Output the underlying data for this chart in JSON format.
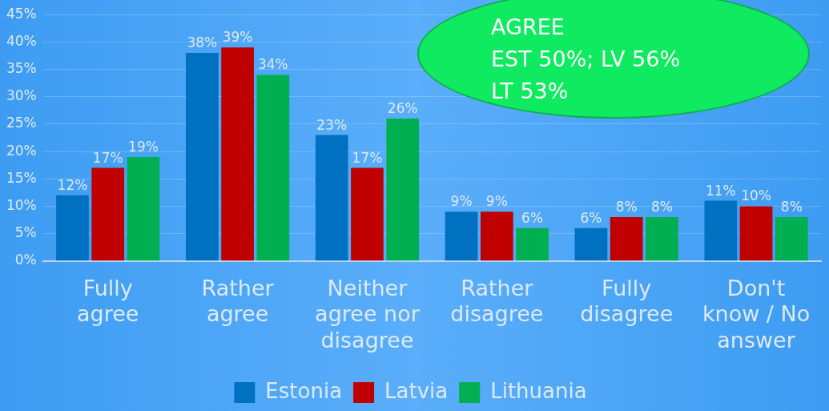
{
  "chart_data": {
    "type": "bar",
    "categories": [
      "Fully agree",
      "Rather agree",
      "Neither agree nor disagree",
      "Rather disagree",
      "Fully disagree",
      "Don't know / No answer"
    ],
    "series": [
      {
        "name": "Estonia",
        "color": "#0070c0",
        "values": [
          12,
          38,
          23,
          9,
          6,
          11
        ]
      },
      {
        "name": "Latvia",
        "color": "#c00000",
        "values": [
          17,
          39,
          17,
          9,
          8,
          10
        ]
      },
      {
        "name": "Lithuania",
        "color": "#00b050",
        "values": [
          19,
          34,
          26,
          6,
          8,
          8
        ]
      }
    ],
    "ylim": [
      0,
      45
    ],
    "yticks": [
      {
        "value": 0,
        "label": "0%"
      },
      {
        "value": 5,
        "label": "5%"
      },
      {
        "value": 10,
        "label": "10%"
      },
      {
        "value": 15,
        "label": "15%"
      },
      {
        "value": 20,
        "label": "20%"
      },
      {
        "value": 25,
        "label": "25%"
      },
      {
        "value": 30,
        "label": "30%"
      },
      {
        "value": 35,
        "label": "35%"
      },
      {
        "value": 40,
        "label": "40%"
      },
      {
        "value": 45,
        "label": "45%"
      }
    ],
    "value_labels": [
      [
        "12%",
        "38%",
        "23%",
        "9%",
        "6%",
        "11%"
      ],
      [
        "17%",
        "39%",
        "17%",
        "9%",
        "8%",
        "10%"
      ],
      [
        "19%",
        "34%",
        "26%",
        "6%",
        "8%",
        "8%"
      ]
    ],
    "grid": "y",
    "legend": "bottom",
    "annotations": [
      "AGREE\nEST 50%; LV 56%\nLT 53%"
    ]
  }
}
